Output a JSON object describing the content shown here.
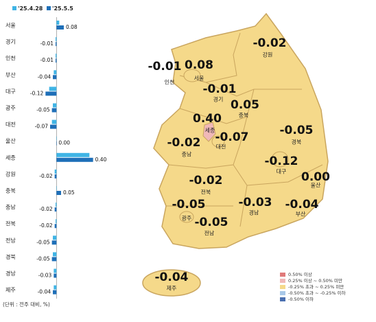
{
  "chart_data": {
    "type": "bar",
    "orientation": "horizontal",
    "categories": [
      "서울",
      "경기",
      "인천",
      "부산",
      "대구",
      "광주",
      "대전",
      "울산",
      "세종",
      "강원",
      "충북",
      "충남",
      "전북",
      "전남",
      "경북",
      "경남",
      "제주"
    ],
    "series": [
      {
        "name": "'25.4.28",
        "color": "#3fb4e5",
        "values": [
          0.03,
          -0.01,
          -0.01,
          -0.03,
          -0.08,
          -0.04,
          -0.05,
          0.0,
          0.36,
          -0.02,
          0.0,
          -0.01,
          -0.01,
          -0.04,
          -0.04,
          -0.03,
          -0.03
        ]
      },
      {
        "name": "'25.5.5",
        "color": "#1e6fb8",
        "values": [
          0.08,
          -0.01,
          -0.01,
          -0.04,
          -0.12,
          -0.05,
          -0.07,
          0.0,
          0.4,
          -0.02,
          0.05,
          -0.02,
          -0.02,
          -0.05,
          -0.05,
          -0.03,
          -0.04
        ],
        "value_labels": [
          "0.08",
          "-0.01",
          "-0.01",
          "-0.04",
          "-0.12",
          "-0.05",
          "-0.07",
          "0.00",
          "0.40",
          "-0.02",
          "0.05",
          "-0.02",
          "-0.02",
          "-0.05",
          "-0.05",
          "-0.03",
          "-0.04"
        ]
      }
    ],
    "xlim": [
      -0.28,
      0.5
    ],
    "unit_note": "(단위 : 전주 대비, %)",
    "map_legend": [
      {
        "label": "0.50% 이상",
        "color": "#e07a7a"
      },
      {
        "label": "0.25% 이상 ~ 0.50% 미만",
        "color": "#f0b8b8"
      },
      {
        "label": "-0.25% 초과 ~ 0.25% 미만",
        "color": "#f5d98a"
      },
      {
        "label": "-0.50% 초과 ~ -0.25% 이하",
        "color": "#a8c8e8"
      },
      {
        "label": "-0.50% 이하",
        "color": "#4a6fb0"
      }
    ]
  }
}
